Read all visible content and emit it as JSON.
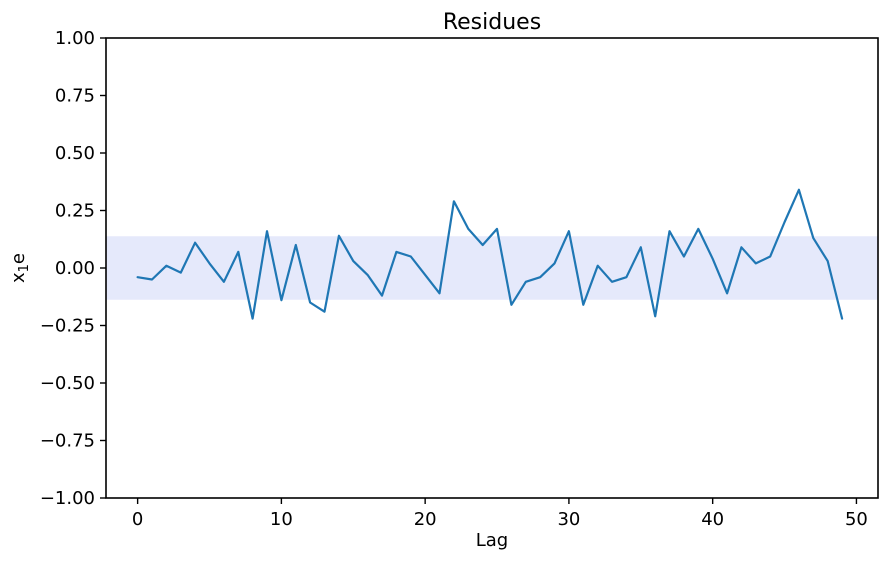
{
  "figure": {
    "background": "#ffffff",
    "text_color": "#000000",
    "spine_color": "#000000"
  },
  "chart_data": {
    "type": "line",
    "title": "Residues",
    "xlabel": "Lag",
    "ylabel": {
      "base": "x",
      "sub": "1",
      "suffix": "e",
      "display": "x₁e"
    },
    "grid": false,
    "legend": null,
    "xlim": [
      -2.2,
      51.5
    ],
    "ylim": [
      -1.0,
      1.0
    ],
    "xticks": [
      {
        "value": 0,
        "label": "0"
      },
      {
        "value": 10,
        "label": "10"
      },
      {
        "value": 20,
        "label": "20"
      },
      {
        "value": 30,
        "label": "30"
      },
      {
        "value": 40,
        "label": "40"
      },
      {
        "value": 50,
        "label": "50"
      }
    ],
    "yticks": [
      {
        "value": 1.0,
        "label": "1.00"
      },
      {
        "value": 0.75,
        "label": "0.75"
      },
      {
        "value": 0.5,
        "label": "0.50"
      },
      {
        "value": 0.25,
        "label": "0.25"
      },
      {
        "value": 0.0,
        "label": "0.00"
      },
      {
        "value": -0.25,
        "label": "−0.25"
      },
      {
        "value": -0.5,
        "label": "−0.50"
      },
      {
        "value": -0.75,
        "label": "−0.75"
      },
      {
        "value": -1.0,
        "label": "−1.00"
      }
    ],
    "band": {
      "low": -0.138,
      "high": 0.138,
      "color": "#e5e9fb",
      "meaning": "confidence-band"
    },
    "series": [
      {
        "name": "residues",
        "color": "#1f77b4",
        "line_width": 2.2,
        "x_start": 0,
        "x_step": 1,
        "values": [
          -0.04,
          -0.05,
          0.01,
          -0.02,
          0.11,
          0.02,
          -0.06,
          0.07,
          -0.22,
          0.16,
          -0.14,
          0.1,
          -0.15,
          -0.19,
          0.14,
          0.03,
          -0.03,
          -0.12,
          0.07,
          0.05,
          -0.03,
          -0.11,
          0.29,
          0.17,
          0.1,
          0.17,
          -0.16,
          -0.06,
          -0.04,
          0.02,
          0.16,
          -0.16,
          0.01,
          -0.06,
          -0.04,
          0.09,
          -0.21,
          0.16,
          0.05,
          0.17,
          0.04,
          -0.11,
          0.09,
          0.02,
          0.05,
          0.2,
          0.34,
          0.13,
          0.03,
          -0.22
        ]
      }
    ]
  }
}
